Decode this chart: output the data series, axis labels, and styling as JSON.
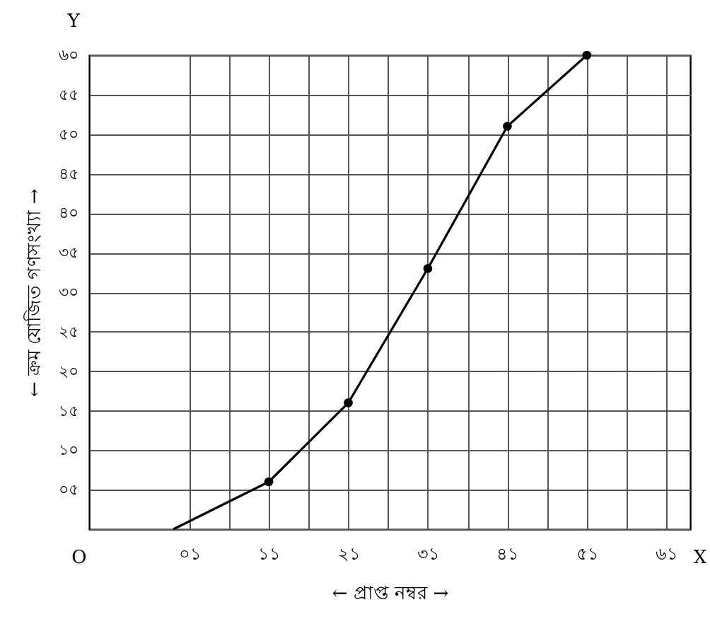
{
  "chart_data": {
    "type": "line",
    "xlabel": "← প্রাপ্ত নম্বর →",
    "ylabel": "← ক্রম যোজিত গণসংখ্যা →",
    "annotations": [
      "Y",
      "O",
      "X"
    ],
    "series": [
      {
        "color": "#000000",
        "x": [
          -1,
          11
        ],
        "values": [
          0,
          6
        ]
      },
      {
        "color": "#000000",
        "marker": "circle",
        "x": [
          11,
          21,
          31,
          41,
          51
        ],
        "values": [
          6,
          16,
          33,
          51,
          60
        ]
      }
    ],
    "xlim": [
      -11.6,
      64
    ],
    "xticks": [
      {
        "value": 1,
        "label": "০১"
      },
      {
        "value": 6,
        "label": null
      },
      {
        "value": 11,
        "label": "১১"
      },
      {
        "value": 16,
        "label": null
      },
      {
        "value": 21,
        "label": "২১"
      },
      {
        "value": 26,
        "label": null
      },
      {
        "value": 31,
        "label": "৩১"
      },
      {
        "value": 36,
        "label": null
      },
      {
        "value": 41,
        "label": "৪১"
      },
      {
        "value": 46,
        "label": null
      },
      {
        "value": 51,
        "label": "৫১"
      },
      {
        "value": 56,
        "label": null
      },
      {
        "value": 61,
        "label": "৬১"
      }
    ],
    "ylim": [
      0,
      60
    ],
    "yticks": [
      {
        "value": 0,
        "label": null
      },
      {
        "value": 5,
        "label": "০৫"
      },
      {
        "value": 10,
        "label": "১০"
      },
      {
        "value": 15,
        "label": "১৫"
      },
      {
        "value": 20,
        "label": "২০"
      },
      {
        "value": 25,
        "label": "২৫"
      },
      {
        "value": 30,
        "label": "৩০"
      },
      {
        "value": 35,
        "label": "৩৫"
      },
      {
        "value": 40,
        "label": "৪০"
      },
      {
        "value": 45,
        "label": "৪৫"
      },
      {
        "value": 50,
        "label": "৫০"
      },
      {
        "value": 55,
        "label": "৫৫"
      },
      {
        "value": 60,
        "label": "৬০"
      }
    ],
    "grid": true,
    "line_style": "solid"
  }
}
